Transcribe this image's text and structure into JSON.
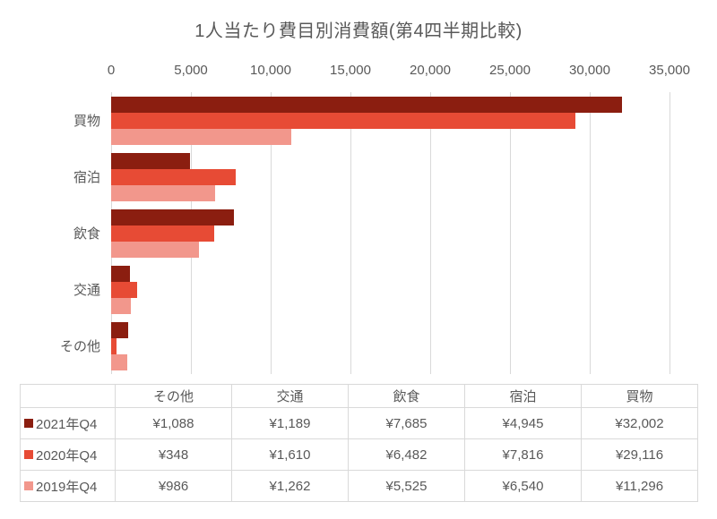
{
  "chart_data": {
    "type": "bar",
    "orientation": "horizontal",
    "title": "1人当たり費目別消費額(第4四半期比較)",
    "categories": [
      "買物",
      "宿泊",
      "飲食",
      "交通",
      "その他"
    ],
    "series": [
      {
        "name": "2021年Q4",
        "color": "#8B1E10",
        "values": [
          32002,
          4945,
          7685,
          1189,
          1088
        ]
      },
      {
        "name": "2020年Q4",
        "color": "#E74B35",
        "values": [
          29116,
          7816,
          6482,
          1610,
          348
        ]
      },
      {
        "name": "2019年Q4",
        "color": "#F2978C",
        "values": [
          11296,
          6540,
          5525,
          1262,
          986
        ]
      }
    ],
    "xlim": [
      0,
      35000
    ],
    "x_ticks": [
      "0",
      "5,000",
      "10,000",
      "15,000",
      "20,000",
      "25,000",
      "30,000",
      "35,000"
    ],
    "grid": true,
    "gridline_color": "#D9D9D9",
    "text_color": "#595959"
  },
  "table": {
    "columns": [
      "その他",
      "交通",
      "飲食",
      "宿泊",
      "買物"
    ],
    "rows": [
      {
        "label": "2021年Q4",
        "color": "#8B1E10",
        "values": [
          "¥1,088",
          "¥1,189",
          "¥7,685",
          "¥4,945",
          "¥32,002"
        ]
      },
      {
        "label": "2020年Q4",
        "color": "#E74B35",
        "values": [
          "¥348",
          "¥1,610",
          "¥6,482",
          "¥7,816",
          "¥29,116"
        ]
      },
      {
        "label": "2019年Q4",
        "color": "#F2978C",
        "values": [
          "¥986",
          "¥1,262",
          "¥5,525",
          "¥6,540",
          "¥11,296"
        ]
      }
    ]
  }
}
